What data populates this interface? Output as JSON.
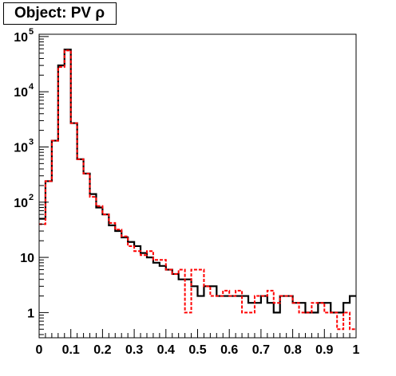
{
  "chart_data": {
    "type": "histogram",
    "title": "Object: PV ρ",
    "xlabel": "",
    "ylabel": "",
    "xlim": [
      0,
      1
    ],
    "ylim": [
      0.35,
      110000
    ],
    "y_scale": "log",
    "grid": false,
    "legend": "none",
    "x_bin_edges_start": 0,
    "x_bin_width": 0.02,
    "x_tick_labels": [
      "0",
      "0.1",
      "0.2",
      "0.3",
      "0.4",
      "0.5",
      "0.6",
      "0.7",
      "0.8",
      "0.9",
      "1"
    ],
    "x_tick_values": [
      0,
      0.1,
      0.2,
      0.3,
      0.4,
      0.5,
      0.6,
      0.7,
      0.8,
      0.9,
      1.0
    ],
    "y_tick_labels": [
      {
        "value": 1,
        "base": "1",
        "exp": ""
      },
      {
        "value": 10,
        "base": "10",
        "exp": ""
      },
      {
        "value": 100,
        "base": "10",
        "exp": "2"
      },
      {
        "value": 1000,
        "base": "10",
        "exp": "3"
      },
      {
        "value": 10000,
        "base": "10",
        "exp": "4"
      },
      {
        "value": 100000,
        "base": "10",
        "exp": "5"
      }
    ],
    "series": [
      {
        "color": "#000000",
        "style": "solid",
        "values": [
          50,
          240,
          1300,
          30000,
          58000,
          2700,
          600,
          330,
          140,
          80,
          60,
          38,
          30,
          23,
          19,
          16,
          12,
          10,
          8,
          7,
          6,
          5,
          4,
          4,
          3,
          2,
          3,
          3,
          2,
          2,
          2,
          2,
          2,
          1.5,
          1.5,
          2,
          1.5,
          1,
          2,
          2,
          1.5,
          1.5,
          1,
          1,
          1.5,
          1.5,
          1,
          1,
          1.5,
          2
        ]
      },
      {
        "color": "#ff0000",
        "style": "dashed",
        "values": [
          40,
          240,
          1300,
          28000,
          56000,
          2700,
          600,
          330,
          125,
          85,
          60,
          42,
          32,
          24,
          16,
          13,
          11,
          13,
          9,
          9,
          6,
          5,
          6,
          1,
          6,
          6,
          3,
          2,
          2,
          2.5,
          2,
          2.5,
          1,
          1,
          2,
          2,
          2.5,
          1.5,
          2,
          2,
          1.5,
          1,
          1,
          1.5,
          1.5,
          1,
          1,
          0.5,
          1,
          0.5
        ]
      }
    ]
  }
}
